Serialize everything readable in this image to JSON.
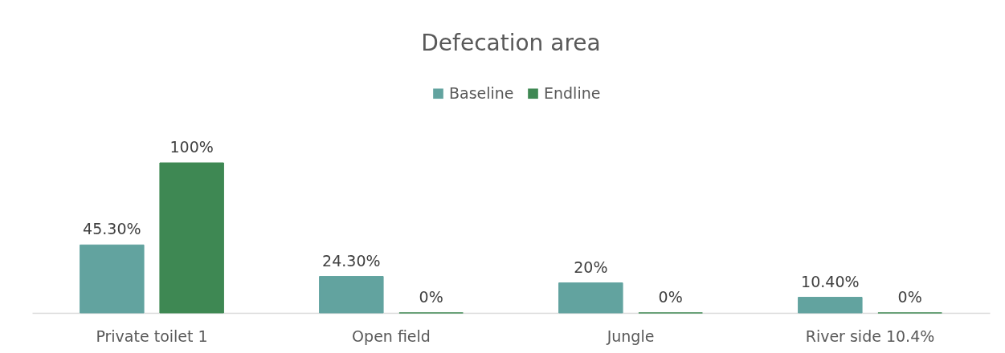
{
  "chart_data": {
    "type": "bar",
    "title": "Defecation area",
    "categories": [
      "Private toilet 1",
      "Open field",
      "Jungle",
      "River side 10.4%"
    ],
    "series": [
      {
        "name": "Baseline",
        "color": "#62a39f",
        "values": [
          45.3,
          24.3,
          20,
          10.4
        ],
        "value_labels": [
          "45.30%",
          "24.30%",
          "20%",
          "10.40%"
        ]
      },
      {
        "name": "Endline",
        "color": "#3e8853",
        "values": [
          100,
          0,
          0,
          0
        ],
        "value_labels": [
          "100%",
          "0%",
          "0%",
          "0%"
        ]
      }
    ],
    "legend": "top",
    "tick_labels": "x"
  }
}
